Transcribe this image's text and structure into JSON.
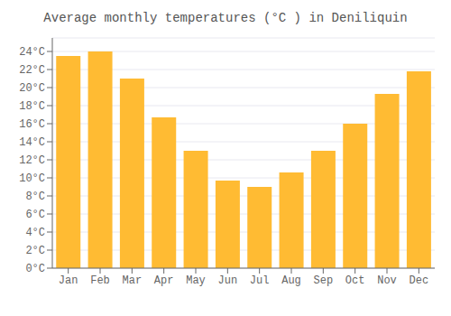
{
  "chart_data": {
    "type": "bar",
    "title": "Average monthly temperatures (°C ) in Deniliquin",
    "categories": [
      "Jan",
      "Feb",
      "Mar",
      "Apr",
      "May",
      "Jun",
      "Jul",
      "Aug",
      "Sep",
      "Oct",
      "Nov",
      "Dec"
    ],
    "values": [
      23.5,
      24.0,
      21.0,
      16.7,
      13.0,
      9.7,
      9.0,
      10.6,
      13.0,
      16.0,
      19.3,
      21.8
    ],
    "color": "#FFBB33",
    "ylim": [
      0,
      25.5
    ],
    "yticks": [
      {
        "value": 0,
        "label": "0°C"
      },
      {
        "value": 2,
        "label": "2°C"
      },
      {
        "value": 4,
        "label": "4°C"
      },
      {
        "value": 6,
        "label": "6°C"
      },
      {
        "value": 8,
        "label": "8°C"
      },
      {
        "value": 10,
        "label": "10°C"
      },
      {
        "value": 12,
        "label": "12°C"
      },
      {
        "value": 14,
        "label": "14°C"
      },
      {
        "value": 16,
        "label": "16°C"
      },
      {
        "value": 18,
        "label": "18°C"
      },
      {
        "value": 20,
        "label": "20°C"
      },
      {
        "value": 22,
        "label": "22°C"
      },
      {
        "value": 24,
        "label": "24°C"
      }
    ],
    "grid": true
  }
}
